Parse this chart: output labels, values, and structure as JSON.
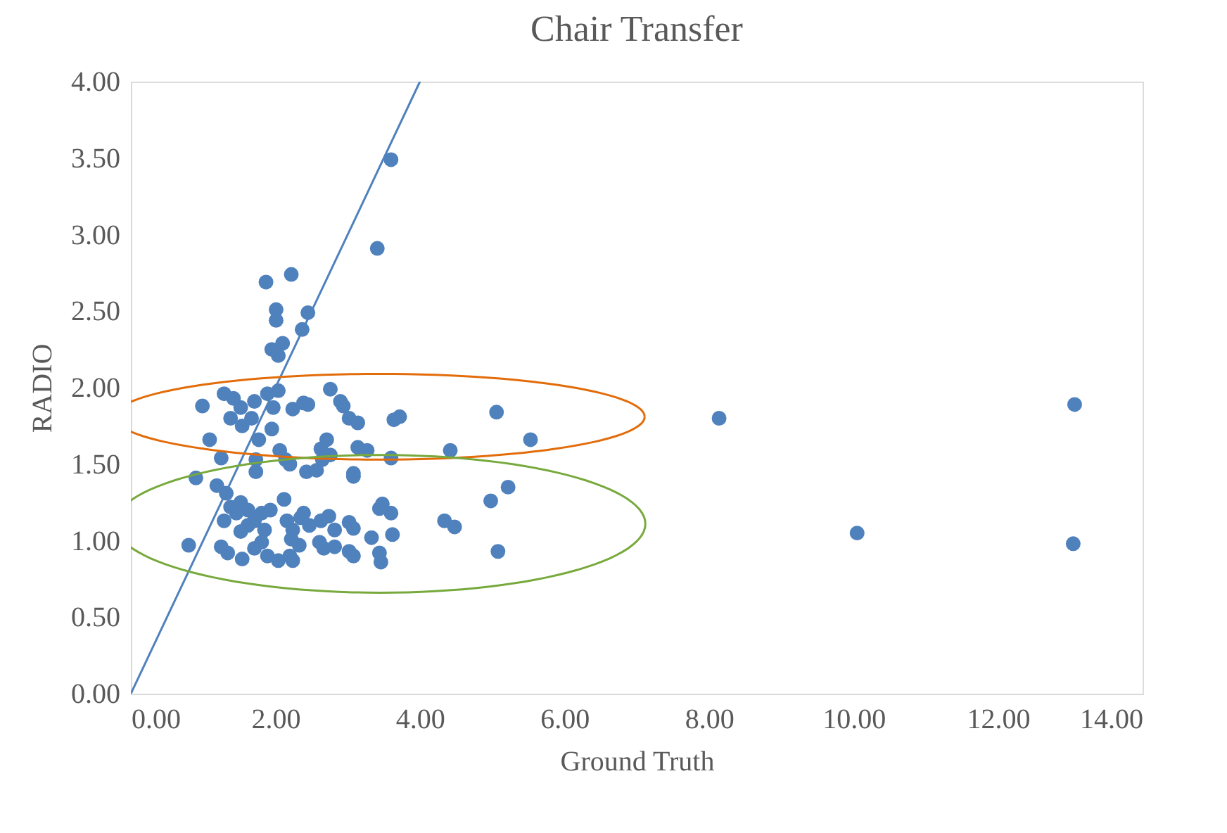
{
  "chart_data": {
    "type": "scatter",
    "title": "Chair Transfer",
    "xlabel": "Ground Truth",
    "ylabel": "RADIO",
    "xlim": [
      0,
      14
    ],
    "ylim": [
      0,
      4
    ],
    "xticks": [
      {
        "value": 0,
        "label": "0.00"
      },
      {
        "value": 2,
        "label": "2.00"
      },
      {
        "value": 4,
        "label": "4.00"
      },
      {
        "value": 6,
        "label": "6.00"
      },
      {
        "value": 8,
        "label": "8.00"
      },
      {
        "value": 10,
        "label": "10.00"
      },
      {
        "value": 12,
        "label": "12.00"
      },
      {
        "value": 14,
        "label": "14.00"
      }
    ],
    "yticks": [
      {
        "value": 0,
        "label": "0.00"
      },
      {
        "value": 0.5,
        "label": "0.50"
      },
      {
        "value": 1,
        "label": "1.00"
      },
      {
        "value": 1.5,
        "label": "1.50"
      },
      {
        "value": 2,
        "label": "2.00"
      },
      {
        "value": 2.5,
        "label": "2.50"
      },
      {
        "value": 3,
        "label": "3.00"
      },
      {
        "value": 3.5,
        "label": "3.50"
      },
      {
        "value": 4,
        "label": "4.00"
      }
    ],
    "grid": false,
    "marker": "circle",
    "series": [
      {
        "type": "line",
        "color": "#4f81bd",
        "line_style": "solid",
        "marker": "none",
        "x": [
          0,
          4
        ],
        "values": [
          0,
          4
        ]
      },
      {
        "color": "#4f81bd",
        "x": [
          3.6,
          3.41,
          1.87,
          2.22,
          2.45,
          2.01,
          2.01,
          2.37,
          1.95,
          2.1,
          2.04,
          3.72,
          3.64,
          5.06,
          4.42,
          5.53,
          8.14,
          13.06,
          10.05,
          13.04,
          5.08,
          5.22,
          4.98,
          4.34,
          4.48,
          3.6,
          3.44,
          3.48,
          3.62,
          3.33,
          3.44,
          3.46,
          3.6,
          3.27,
          3.14,
          3.08,
          2.9,
          2.94,
          2.76,
          2.24,
          2.39,
          2.45,
          3.02,
          3.14,
          0.99,
          1.09,
          0.9,
          1.19,
          0.8,
          1.25,
          1.34,
          1.54,
          1.25,
          1.29,
          1.42,
          1.52,
          1.38,
          1.54,
          1.67,
          1.71,
          1.89,
          2.04,
          1.97,
          1.77,
          1.95,
          2.06,
          1.73,
          1.73,
          2.14,
          2.2,
          2.43,
          2.57,
          2.63,
          2.71,
          2.65,
          2.76,
          3.08,
          1.32,
          1.38,
          1.29,
          1.52,
          1.62,
          1.46,
          1.62,
          1.52,
          1.71,
          1.81,
          1.93,
          1.85,
          2.12,
          2.16,
          2.24,
          2.35,
          2.47,
          2.39,
          2.63,
          2.74,
          2.82,
          2.61,
          2.67,
          2.82,
          3.02,
          3.08,
          3.02,
          3.08,
          2.33,
          2.22,
          2.2,
          2.04,
          1.89,
          1.81,
          2.24,
          1.71
        ],
        "values": [
          3.49,
          2.91,
          2.69,
          2.74,
          2.49,
          2.51,
          2.44,
          2.38,
          2.25,
          2.29,
          2.21,
          1.81,
          1.79,
          1.84,
          1.59,
          1.66,
          1.8,
          1.89,
          1.05,
          0.98,
          0.93,
          1.35,
          1.26,
          1.13,
          1.09,
          1.18,
          1.21,
          1.24,
          1.04,
          1.02,
          0.92,
          0.86,
          1.54,
          1.59,
          1.61,
          1.42,
          1.91,
          1.88,
          1.99,
          1.86,
          1.9,
          1.89,
          1.8,
          1.77,
          1.88,
          1.66,
          1.41,
          1.36,
          0.97,
          0.96,
          0.92,
          0.88,
          1.54,
          1.96,
          1.93,
          1.87,
          1.8,
          1.75,
          1.8,
          1.91,
          1.96,
          1.98,
          1.87,
          1.66,
          1.73,
          1.59,
          1.53,
          1.45,
          1.53,
          1.5,
          1.45,
          1.46,
          1.6,
          1.66,
          1.53,
          1.56,
          1.44,
          1.31,
          1.22,
          1.13,
          1.25,
          1.2,
          1.18,
          1.1,
          1.06,
          1.13,
          1.18,
          1.2,
          1.07,
          1.27,
          1.13,
          1.07,
          1.15,
          1.1,
          1.18,
          1.13,
          1.16,
          1.07,
          0.99,
          0.95,
          0.96,
          1.12,
          1.08,
          0.93,
          0.9,
          0.97,
          1.01,
          0.9,
          0.87,
          0.9,
          0.99,
          0.87,
          0.95
        ]
      }
    ]
  }
}
